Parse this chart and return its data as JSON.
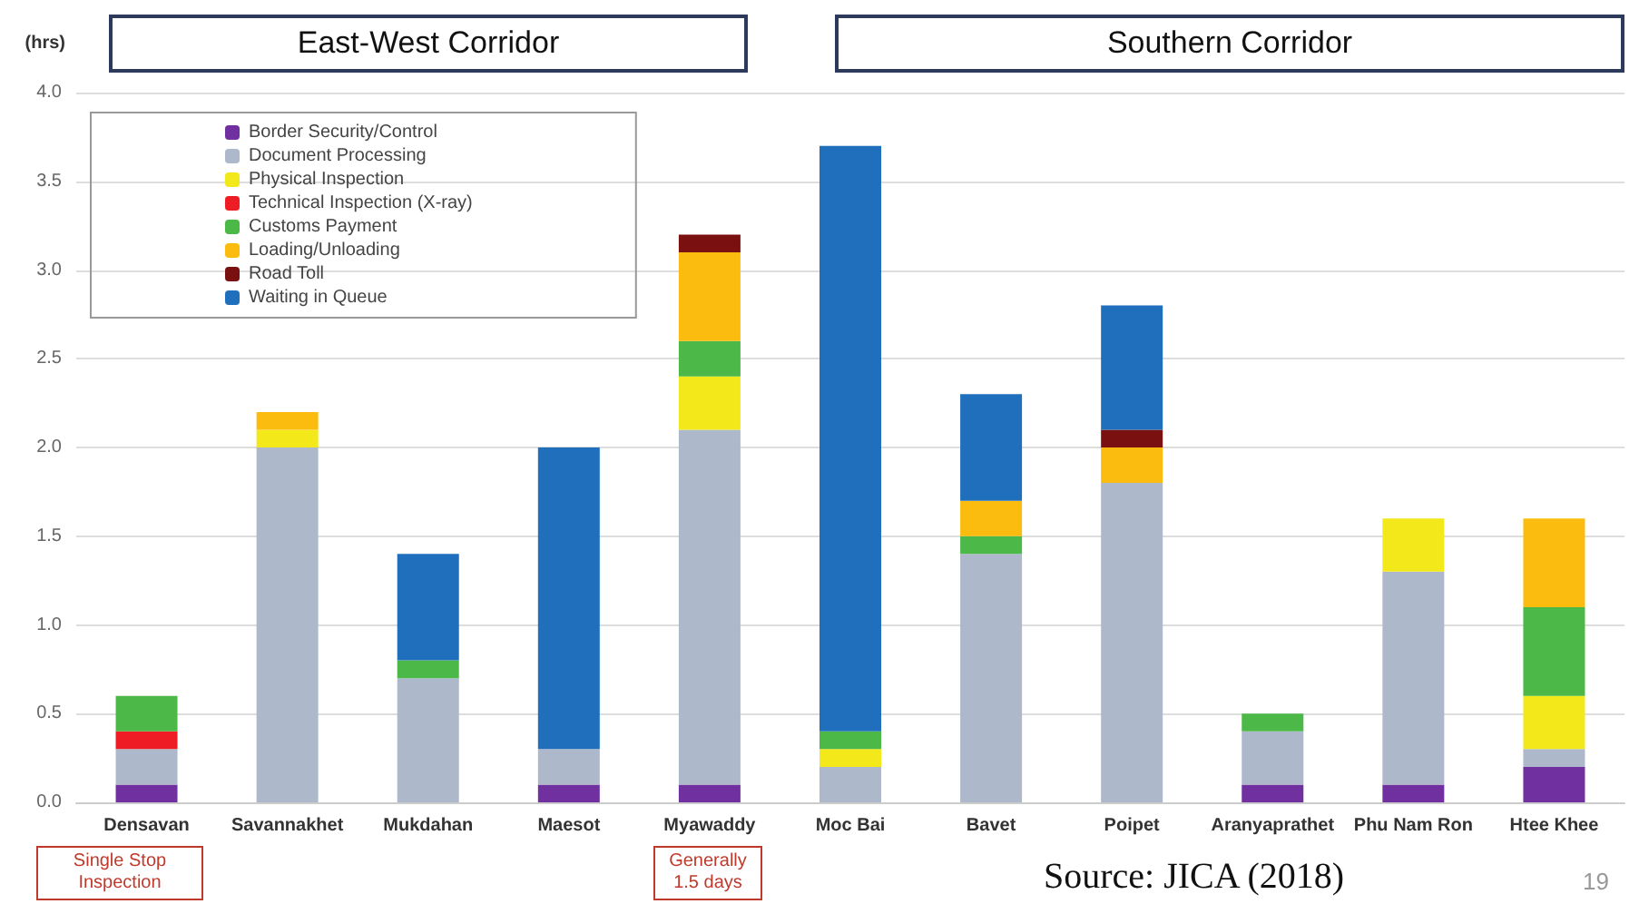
{
  "chart_data": {
    "type": "bar",
    "stacked": true,
    "ylabel": "(hrs)",
    "categories": [
      "Densavan",
      "Savannakhet",
      "Mukdahan",
      "Maesot",
      "Myawaddy",
      "Moc Bai",
      "Bavet",
      "Poipet",
      "Aranyaprathet",
      "Phu Nam Ron",
      "Htee Khee"
    ],
    "series": [
      {
        "name": "Border Security/Control",
        "color": "#7030a0",
        "values": [
          0.1,
          null,
          null,
          0.1,
          0.1,
          null,
          null,
          null,
          0.1,
          0.1,
          0.2
        ]
      },
      {
        "name": "Document Processing",
        "color": "#adb9ca",
        "values": [
          0.2,
          2.0,
          0.7,
          0.2,
          2.0,
          0.2,
          1.4,
          1.8,
          0.3,
          1.2,
          0.1
        ]
      },
      {
        "name": "Physical Inspection",
        "color": "#f2e81a",
        "values": [
          null,
          0.1,
          null,
          null,
          0.3,
          0.1,
          null,
          null,
          null,
          0.3,
          0.3
        ]
      },
      {
        "name": "Technical Inspection (X-ray)",
        "color": "#ee1c24",
        "values": [
          0.1,
          null,
          null,
          null,
          null,
          null,
          null,
          null,
          null,
          null,
          null
        ]
      },
      {
        "name": "Customs Payment",
        "color": "#4cb848",
        "values": [
          0.2,
          null,
          0.1,
          null,
          0.2,
          0.1,
          0.1,
          null,
          0.1,
          null,
          0.5
        ]
      },
      {
        "name": "Loading/Unloading",
        "color": "#fbbc0f",
        "values": [
          null,
          0.1,
          null,
          null,
          0.5,
          null,
          0.2,
          0.2,
          null,
          null,
          0.5
        ]
      },
      {
        "name": "Road Toll",
        "color": "#7b1010",
        "values": [
          null,
          null,
          null,
          null,
          0.1,
          null,
          null,
          0.1,
          null,
          null,
          null
        ]
      },
      {
        "name": "Waiting in Queue",
        "color": "#1f6fbc",
        "values": [
          null,
          null,
          0.6,
          1.7,
          null,
          3.3,
          0.6,
          0.7,
          null,
          null,
          null
        ]
      }
    ],
    "ylim": [
      0,
      4
    ],
    "yticks": [
      {
        "value": 0,
        "label": "0.0"
      },
      {
        "value": 0.5,
        "label": "0.5"
      },
      {
        "value": 1,
        "label": "1.0"
      },
      {
        "value": 1.5,
        "label": "1.5"
      },
      {
        "value": 2,
        "label": "2.0"
      },
      {
        "value": 2.5,
        "label": "2.5"
      },
      {
        "value": 3,
        "label": "3.0"
      },
      {
        "value": 3.5,
        "label": "3.5"
      },
      {
        "value": 4,
        "label": "4.0"
      }
    ],
    "grid": "y",
    "legend": "top left",
    "annotations": [
      "East-West Corridor",
      "Southern Corridor",
      "Single Stop Inspection",
      "Generally 1.5 days",
      "Source: JICA (2018)",
      "19"
    ]
  }
}
